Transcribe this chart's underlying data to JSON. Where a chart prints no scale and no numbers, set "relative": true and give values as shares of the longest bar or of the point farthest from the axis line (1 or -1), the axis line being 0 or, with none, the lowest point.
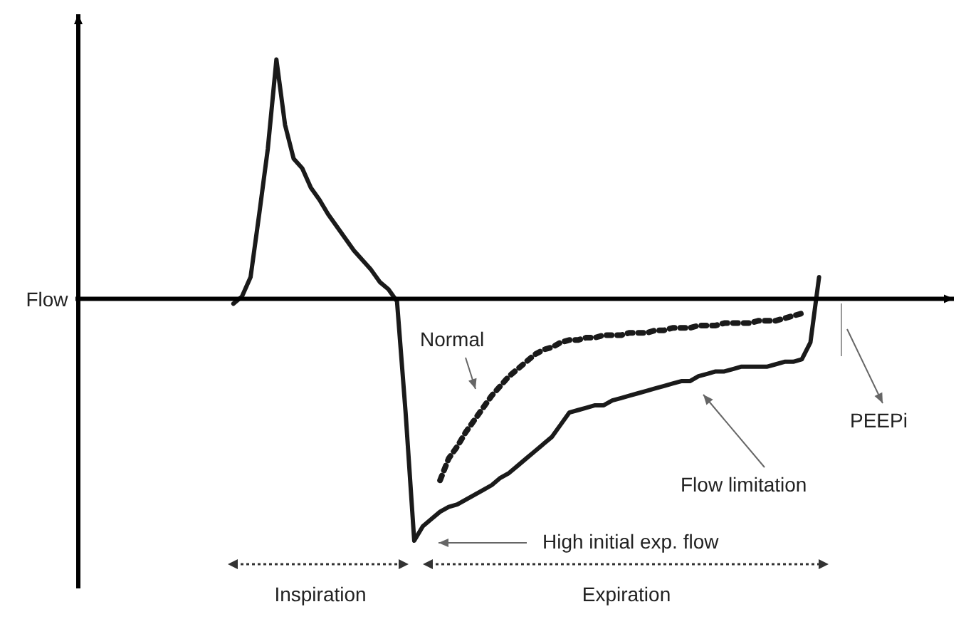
{
  "chart_data": {
    "type": "line",
    "relative": true,
    "ylabel": "Flow",
    "marker": "none",
    "categories": [
      null,
      null,
      null,
      null,
      null,
      null,
      null,
      null,
      null,
      null,
      null,
      null,
      null,
      null,
      null,
      null,
      null,
      null,
      null,
      null,
      null,
      null,
      null,
      null,
      null,
      null,
      null,
      null,
      null,
      null,
      null,
      null,
      null,
      null,
      null,
      null,
      null,
      null,
      null,
      null,
      null,
      null,
      null,
      null,
      null,
      null,
      null,
      null,
      null,
      null,
      null,
      null,
      null,
      null,
      null,
      null,
      null,
      null,
      null,
      null,
      null,
      null,
      null,
      null,
      null,
      null,
      null,
      null,
      null,
      null,
      null,
      null,
      null,
      null,
      null,
      null,
      null,
      null,
      null,
      null,
      null,
      null,
      null,
      null,
      null,
      null,
      null,
      null,
      null,
      null,
      null,
      null,
      null,
      null,
      null,
      null,
      null,
      null,
      null,
      null,
      null
    ],
    "series": [
      {
        "color": "#1a1a1a",
        "line_style": "solid",
        "values": [
          null,
          null,
          null,
          null,
          null,
          null,
          null,
          null,
          null,
          null,
          null,
          null,
          null,
          null,
          null,
          null,
          null,
          null,
          -0.02,
          0.01,
          0.09,
          0.35,
          0.62,
          0.99,
          0.72,
          0.58,
          0.54,
          0.46,
          0.41,
          0.35,
          0.3,
          0.25,
          0.2,
          0.16,
          0.12,
          0.07,
          0.04,
          -0.01,
          -0.47,
          -1,
          -0.94,
          -0.91,
          -0.88,
          -0.86,
          -0.85,
          -0.83,
          -0.81,
          -0.79,
          -0.77,
          -0.74,
          -0.72,
          -0.69,
          -0.66,
          -0.63,
          -0.6,
          -0.57,
          -0.52,
          -0.47,
          -0.46,
          -0.45,
          -0.44,
          -0.44,
          -0.42,
          -0.41,
          -0.4,
          -0.39,
          -0.38,
          -0.37,
          -0.36,
          -0.35,
          -0.34,
          -0.34,
          -0.32,
          -0.31,
          -0.3,
          -0.3,
          -0.29,
          -0.28,
          -0.28,
          -0.28,
          -0.28,
          -0.27,
          -0.26,
          -0.26,
          -0.25,
          -0.18,
          0.09,
          null,
          null,
          null,
          null,
          null,
          null,
          null,
          null,
          null,
          null,
          null,
          null,
          null,
          null
        ]
      },
      {
        "color": "#1a1a1a",
        "line_style": "dotted",
        "values": [
          null,
          null,
          null,
          null,
          null,
          null,
          null,
          null,
          null,
          null,
          null,
          null,
          null,
          null,
          null,
          null,
          null,
          null,
          null,
          null,
          null,
          null,
          null,
          null,
          null,
          null,
          null,
          null,
          null,
          null,
          null,
          null,
          null,
          null,
          null,
          null,
          null,
          null,
          null,
          null,
          null,
          null,
          -0.75,
          -0.66,
          -0.61,
          -0.55,
          -0.5,
          -0.45,
          -0.4,
          -0.36,
          -0.32,
          -0.29,
          -0.26,
          -0.23,
          -0.21,
          -0.2,
          -0.18,
          -0.17,
          -0.17,
          -0.16,
          -0.16,
          -0.15,
          -0.15,
          -0.15,
          -0.14,
          -0.14,
          -0.14,
          -0.13,
          -0.13,
          -0.12,
          -0.12,
          -0.12,
          -0.11,
          -0.11,
          -0.11,
          -0.1,
          -0.1,
          -0.1,
          -0.1,
          -0.09,
          -0.09,
          -0.09,
          -0.08,
          -0.07,
          -0.06,
          null,
          null,
          null,
          null,
          null,
          null,
          null,
          null,
          null,
          null,
          null,
          null,
          null,
          null,
          null,
          null
        ]
      }
    ],
    "annotations": [
      "Normal",
      "Flow limitation",
      "High initial exp. flow",
      "PEEPi",
      "Inspiration",
      "Expiration"
    ]
  }
}
